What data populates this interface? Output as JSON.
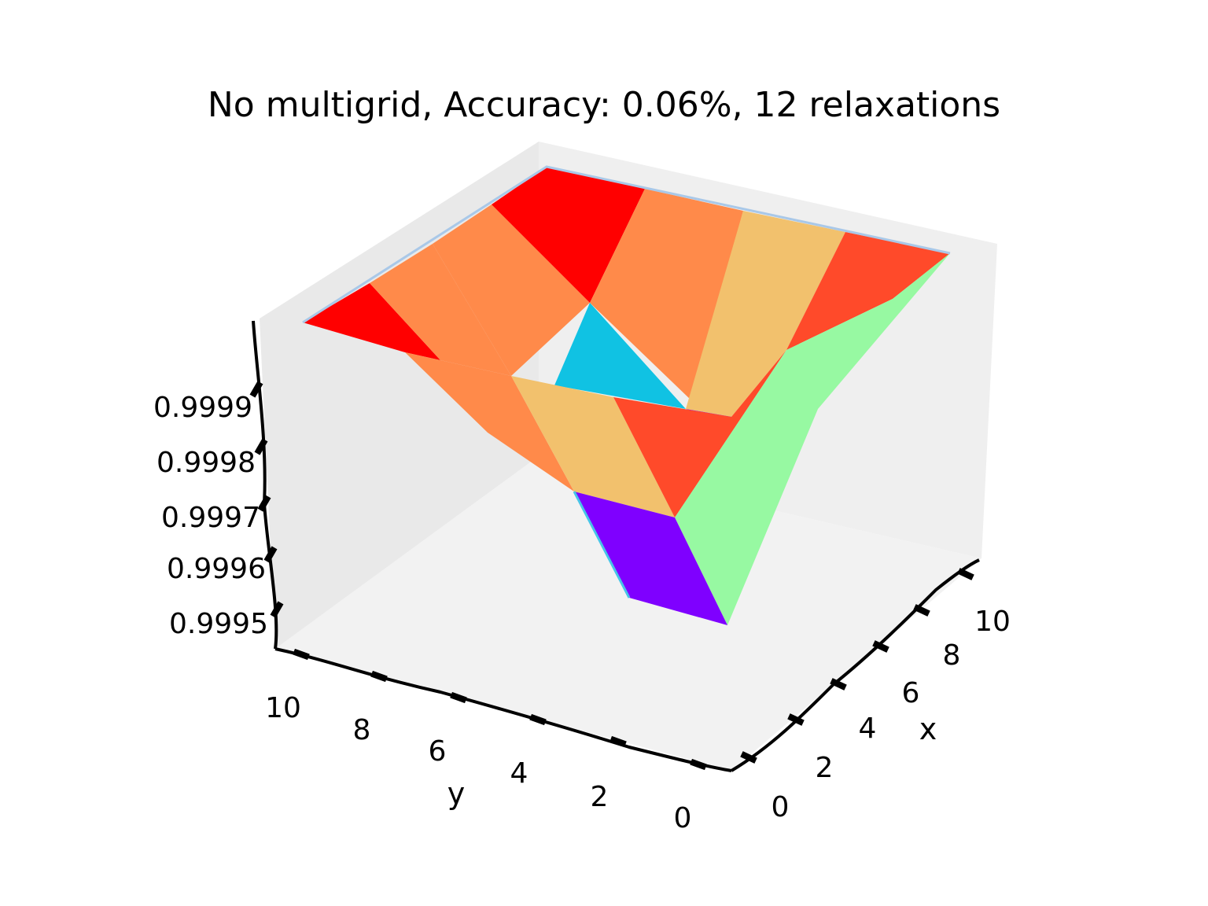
{
  "chart_data": {
    "type": "surface3d",
    "title": "No multigrid, Accuracy: 0.06%, 12 relaxations",
    "xlabel": "x",
    "ylabel": "y",
    "zlabel": "",
    "x_ticks": [
      "0",
      "2",
      "4",
      "6",
      "8",
      "10"
    ],
    "y_ticks": [
      "0",
      "2",
      "4",
      "6",
      "8",
      "10"
    ],
    "z_ticks": [
      "0.9995",
      "0.9996",
      "0.9997",
      "0.9998",
      "0.9999"
    ],
    "xlim": [
      0,
      11
    ],
    "ylim": [
      0,
      11
    ],
    "zlim": [
      0.99945,
      1.0
    ],
    "colormap": "rainbow",
    "surface_points": [
      {
        "x": 0,
        "y": 0,
        "z": 0.99945
      },
      {
        "x": 0,
        "y": 11,
        "z": 0.99995
      },
      {
        "x": 11,
        "y": 11,
        "z": 1.0
      },
      {
        "x": 11,
        "y": 0,
        "z": 0.99995
      }
    ]
  }
}
